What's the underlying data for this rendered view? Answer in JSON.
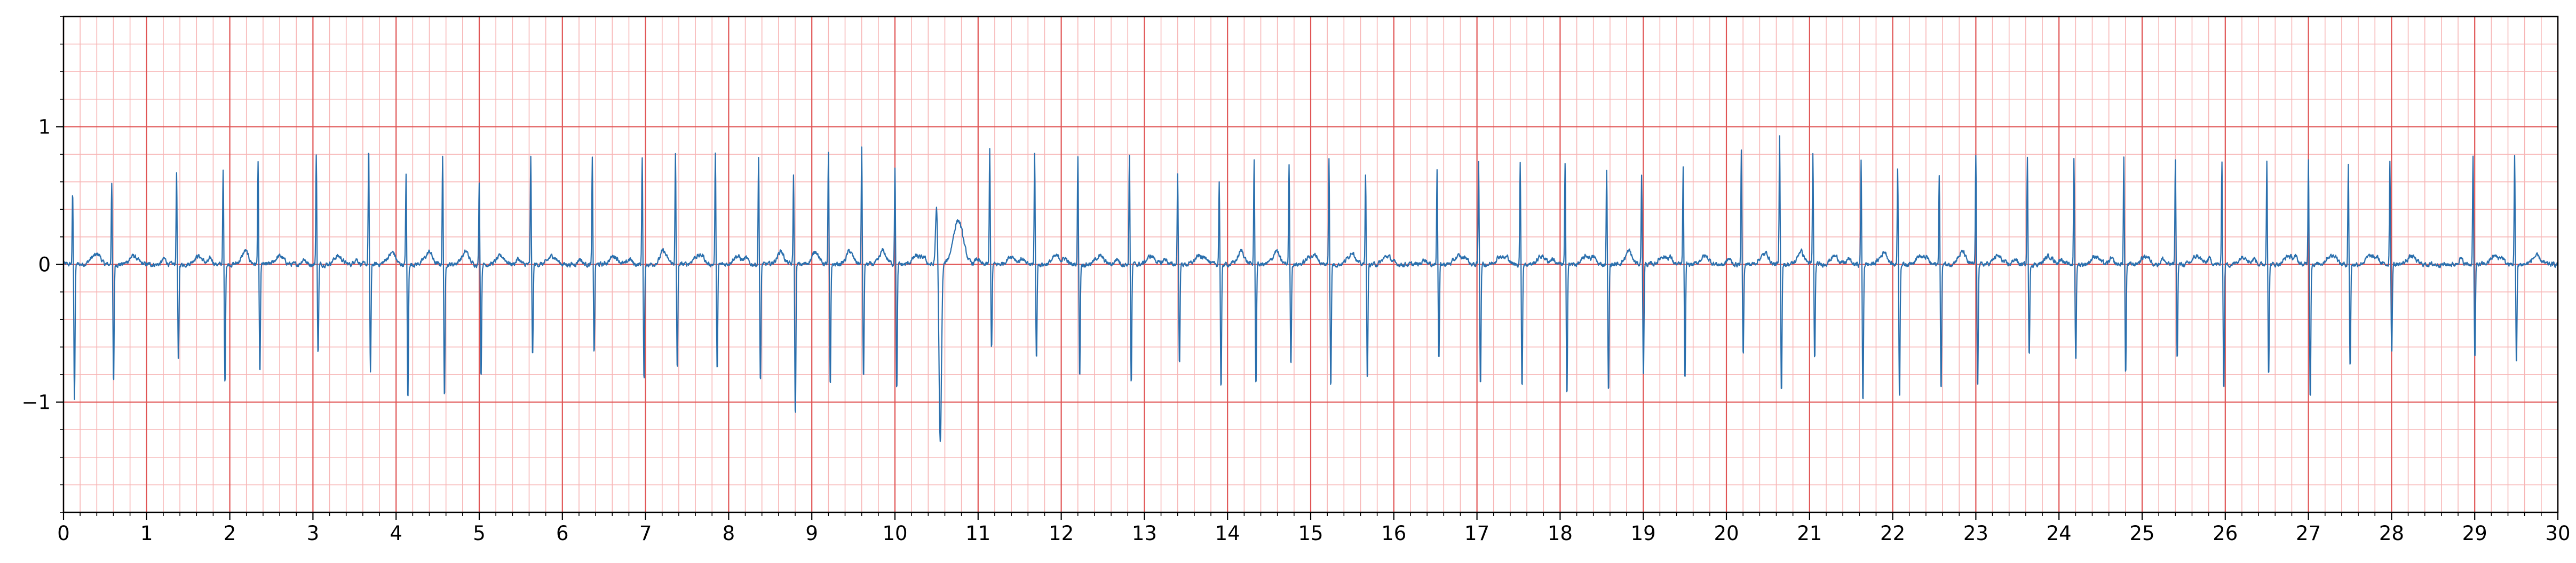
{
  "chart_data": {
    "type": "line",
    "title": "",
    "xlabel": "",
    "ylabel": "",
    "xlim": [
      0,
      30
    ],
    "ylim": [
      -1.8,
      1.8
    ],
    "x_ticks": [
      "0",
      "1",
      "2",
      "3",
      "4",
      "5",
      "6",
      "7",
      "8",
      "9",
      "10",
      "11",
      "12",
      "13",
      "14",
      "15",
      "16",
      "17",
      "18",
      "19",
      "20",
      "21",
      "22",
      "23",
      "24",
      "25",
      "26",
      "27",
      "28",
      "29",
      "30"
    ],
    "y_ticks": [
      {
        "value": 1,
        "label": "1"
      },
      {
        "value": 0,
        "label": "0"
      },
      {
        "value": -1,
        "label": "−1"
      }
    ],
    "grid": {
      "major_x": 1,
      "minor_x": 0.2,
      "major_y": 1,
      "minor_y": 0.2,
      "major_color": "#e05555",
      "minor_color": "#f7b6b6"
    },
    "series": [
      {
        "color": "#2a6fad",
        "sample_rate_hz": 250,
        "beats": [
          {
            "t": 0.11,
            "r": 0.52,
            "s": -0.97
          },
          {
            "t": 0.58,
            "r": 0.6,
            "s": -0.88
          },
          {
            "t": 1.36,
            "r": 0.67,
            "s": -0.73
          },
          {
            "t": 1.92,
            "r": 0.68,
            "s": -0.88
          },
          {
            "t": 2.34,
            "r": 0.74,
            "s": -0.8
          },
          {
            "t": 3.04,
            "r": 0.8,
            "s": -0.65
          },
          {
            "t": 3.67,
            "r": 0.86,
            "s": -0.78
          },
          {
            "t": 4.12,
            "r": 0.65,
            "s": -1.0
          },
          {
            "t": 4.56,
            "r": 0.78,
            "s": -0.99
          },
          {
            "t": 5.0,
            "r": 0.6,
            "s": -0.82
          },
          {
            "t": 5.62,
            "r": 0.78,
            "s": -0.68
          },
          {
            "t": 6.36,
            "r": 0.77,
            "s": -0.65
          },
          {
            "t": 6.96,
            "r": 0.79,
            "s": -0.86
          },
          {
            "t": 7.36,
            "r": 0.8,
            "s": -0.77
          },
          {
            "t": 7.84,
            "r": 0.8,
            "s": -0.78
          },
          {
            "t": 8.36,
            "r": 0.79,
            "s": -0.88
          },
          {
            "t": 8.78,
            "r": 0.65,
            "s": -1.12
          },
          {
            "t": 9.2,
            "r": 0.8,
            "s": -0.91
          },
          {
            "t": 9.6,
            "r": 0.84,
            "s": -0.84
          },
          {
            "t": 10.0,
            "r": 0.72,
            "s": -0.92
          },
          {
            "t": 10.5,
            "r": 0.42,
            "s": -1.3,
            "wide": true
          },
          {
            "t": 11.14,
            "r": 0.85,
            "s": -0.62
          },
          {
            "t": 11.68,
            "r": 0.8,
            "s": -0.7
          },
          {
            "t": 12.2,
            "r": 0.78,
            "s": -0.82
          },
          {
            "t": 12.82,
            "r": 0.8,
            "s": -0.88
          },
          {
            "t": 13.4,
            "r": 0.66,
            "s": -0.72
          },
          {
            "t": 13.9,
            "r": 0.6,
            "s": -0.92
          },
          {
            "t": 14.32,
            "r": 0.75,
            "s": -0.88
          },
          {
            "t": 14.74,
            "r": 0.73,
            "s": -0.73
          },
          {
            "t": 15.22,
            "r": 0.78,
            "s": -0.9
          },
          {
            "t": 15.66,
            "r": 0.67,
            "s": -0.85
          },
          {
            "t": 16.52,
            "r": 0.69,
            "s": -0.7
          },
          {
            "t": 17.02,
            "r": 0.75,
            "s": -0.88
          },
          {
            "t": 17.52,
            "r": 0.73,
            "s": -0.9
          },
          {
            "t": 18.06,
            "r": 0.72,
            "s": -0.95
          },
          {
            "t": 18.56,
            "r": 0.69,
            "s": -0.95
          },
          {
            "t": 18.98,
            "r": 0.65,
            "s": -0.82
          },
          {
            "t": 19.48,
            "r": 0.7,
            "s": -0.85
          },
          {
            "t": 20.18,
            "r": 0.82,
            "s": -0.66
          },
          {
            "t": 20.64,
            "r": 0.93,
            "s": -0.93
          },
          {
            "t": 21.04,
            "r": 0.8,
            "s": -0.7
          },
          {
            "t": 21.62,
            "r": 0.76,
            "s": -1.02
          },
          {
            "t": 22.06,
            "r": 0.7,
            "s": -0.98
          },
          {
            "t": 22.56,
            "r": 0.65,
            "s": -0.92
          },
          {
            "t": 23.0,
            "r": 0.8,
            "s": -0.9
          },
          {
            "t": 23.62,
            "r": 0.78,
            "s": -0.68
          },
          {
            "t": 24.18,
            "r": 0.76,
            "s": -0.72
          },
          {
            "t": 24.78,
            "r": 0.78,
            "s": -0.8
          },
          {
            "t": 25.4,
            "r": 0.76,
            "s": -0.69
          },
          {
            "t": 25.96,
            "r": 0.76,
            "s": -0.92
          },
          {
            "t": 26.5,
            "r": 0.77,
            "s": -0.82
          },
          {
            "t": 27.0,
            "r": 0.76,
            "s": -0.98
          },
          {
            "t": 27.48,
            "r": 0.72,
            "s": -0.75
          },
          {
            "t": 27.98,
            "r": 0.75,
            "s": -0.65
          },
          {
            "t": 28.98,
            "r": 0.8,
            "s": -0.7
          },
          {
            "t": 29.48,
            "r": 0.8,
            "s": -0.74
          }
        ]
      }
    ]
  }
}
